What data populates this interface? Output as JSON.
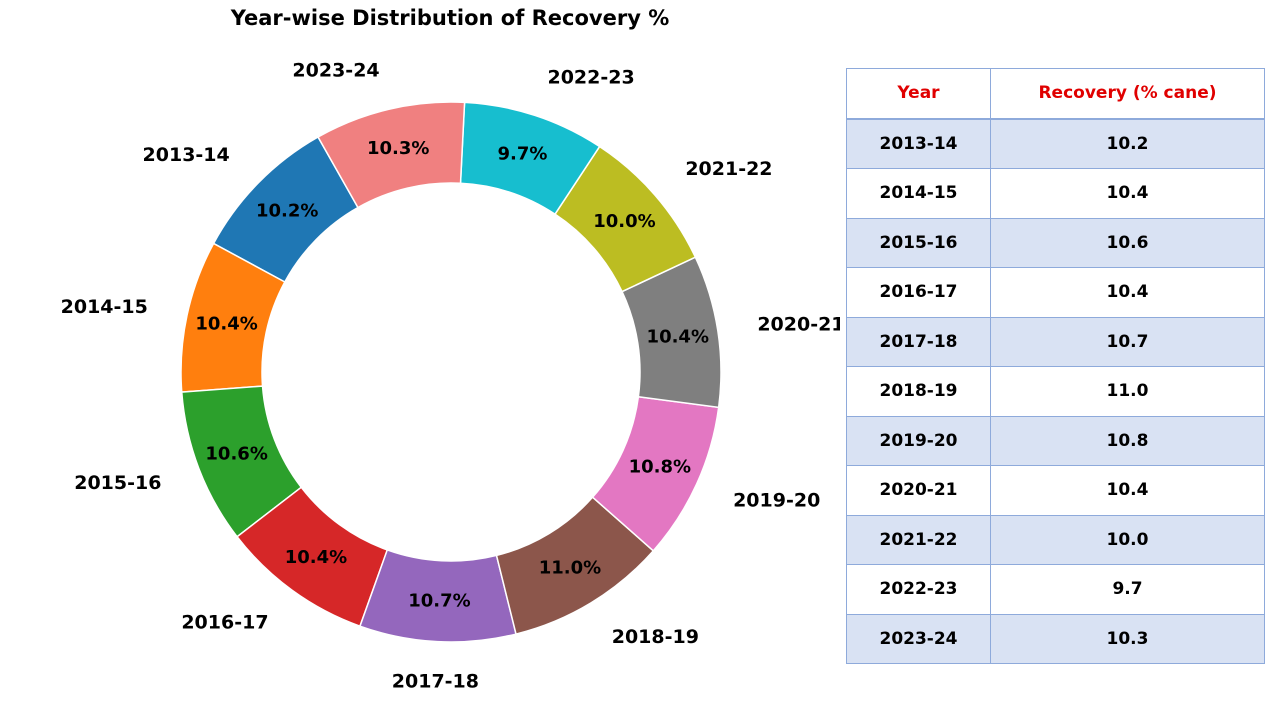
{
  "chart_data": {
    "type": "pie",
    "variant": "donut",
    "title": "Year-wise Distribution of Recovery %",
    "categories": [
      "2013-14",
      "2014-15",
      "2015-16",
      "2016-17",
      "2017-18",
      "2018-19",
      "2019-20",
      "2020-21",
      "2021-22",
      "2022-23",
      "2023-24"
    ],
    "values": [
      10.2,
      10.4,
      10.6,
      10.4,
      10.7,
      11.0,
      10.8,
      10.4,
      10.0,
      9.7,
      10.3
    ],
    "percent_labels": [
      "10.2%",
      "10.4%",
      "10.6%",
      "10.4%",
      "10.7%",
      "11.0%",
      "10.8%",
      "10.4%",
      "10.0%",
      "9.7%",
      "10.3%"
    ],
    "colors": [
      "#1f77b4",
      "#ff7f0e",
      "#2ca02c",
      "#d62728",
      "#9467bd",
      "#8c564b",
      "#e377c2",
      "#7f7f7f",
      "#bcbd22",
      "#17becf",
      "#f08080"
    ],
    "legend": "none"
  },
  "table": {
    "headers": [
      "Year",
      "Recovery (% cane)"
    ],
    "header_color": "#e00000",
    "rows": [
      [
        "2013-14",
        "10.2"
      ],
      [
        "2014-15",
        "10.4"
      ],
      [
        "2015-16",
        "10.6"
      ],
      [
        "2016-17",
        "10.4"
      ],
      [
        "2017-18",
        "10.7"
      ],
      [
        "2018-19",
        "11.0"
      ],
      [
        "2019-20",
        "10.8"
      ],
      [
        "2020-21",
        "10.4"
      ],
      [
        "2021-22",
        "10.0"
      ],
      [
        "2022-23",
        "9.7"
      ],
      [
        "2023-24",
        "10.3"
      ]
    ]
  }
}
